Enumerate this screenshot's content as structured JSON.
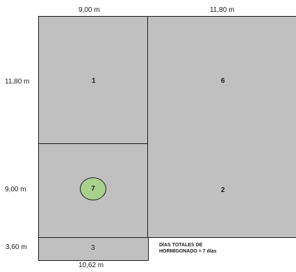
{
  "dimensions": {
    "top_left": "9,00 m",
    "top_right": "11,80 m",
    "left_row1": "11,80 m",
    "left_row2": "9,00 m",
    "left_row3": "3,60 m",
    "bottom": "10,62 m"
  },
  "slabs": {
    "s1": "1",
    "s6": "6",
    "s7": "7",
    "s2": "2",
    "s3": "3"
  },
  "note": {
    "line1": "DÍAS TOTALES DE",
    "line2": "HORMIGONADO = 7 días"
  },
  "colors": {
    "slab_fill": "#c0c0c0",
    "highlight_fill": "#a9d18e"
  }
}
